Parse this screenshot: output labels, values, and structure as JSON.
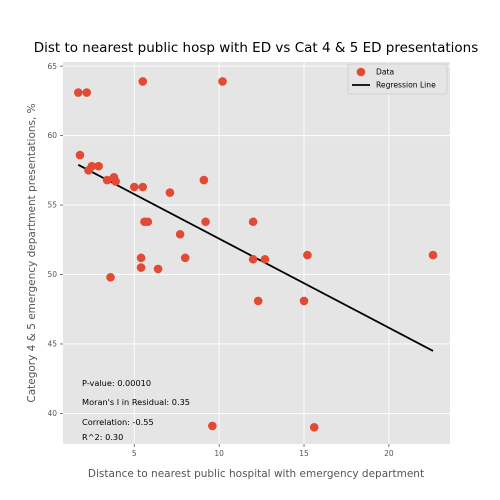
{
  "chart_data": {
    "type": "scatter",
    "title": "Dist to nearest public hosp with ED vs Cat 4 & 5 ED presentations",
    "xlabel": "Distance to nearest public hospital with emergency department",
    "ylabel": "Category 4 & 5 emergency department presentations, %",
    "xlim": [
      0.8,
      23.6
    ],
    "ylim": [
      37.8,
      65.3
    ],
    "xticks": [
      5,
      10,
      15,
      20
    ],
    "yticks": [
      40,
      45,
      50,
      55,
      60,
      65
    ],
    "grid": true,
    "legend_position": "top-right",
    "series": [
      {
        "name": "Data",
        "kind": "points",
        "color": "#E24A33",
        "points": [
          {
            "x": 1.7,
            "y": 63.1
          },
          {
            "x": 2.2,
            "y": 63.1
          },
          {
            "x": 5.5,
            "y": 63.9
          },
          {
            "x": 10.2,
            "y": 63.9
          },
          {
            "x": 1.8,
            "y": 58.6
          },
          {
            "x": 2.3,
            "y": 57.5
          },
          {
            "x": 2.5,
            "y": 57.8
          },
          {
            "x": 2.9,
            "y": 57.8
          },
          {
            "x": 3.4,
            "y": 56.8
          },
          {
            "x": 3.8,
            "y": 57.0
          },
          {
            "x": 3.9,
            "y": 56.7
          },
          {
            "x": 5.0,
            "y": 56.3
          },
          {
            "x": 5.5,
            "y": 56.3
          },
          {
            "x": 7.1,
            "y": 55.9
          },
          {
            "x": 9.1,
            "y": 56.8
          },
          {
            "x": 5.6,
            "y": 53.8
          },
          {
            "x": 5.8,
            "y": 53.8
          },
          {
            "x": 9.2,
            "y": 53.8
          },
          {
            "x": 12.0,
            "y": 53.8
          },
          {
            "x": 7.7,
            "y": 52.9
          },
          {
            "x": 5.4,
            "y": 51.2
          },
          {
            "x": 8.0,
            "y": 51.2
          },
          {
            "x": 12.0,
            "y": 51.1
          },
          {
            "x": 12.7,
            "y": 51.1
          },
          {
            "x": 5.4,
            "y": 50.5
          },
          {
            "x": 6.4,
            "y": 50.4
          },
          {
            "x": 3.6,
            "y": 49.8
          },
          {
            "x": 15.2,
            "y": 51.4
          },
          {
            "x": 22.6,
            "y": 51.4
          },
          {
            "x": 12.3,
            "y": 48.1
          },
          {
            "x": 15.0,
            "y": 48.1
          },
          {
            "x": 9.6,
            "y": 39.1
          },
          {
            "x": 15.6,
            "y": 39.0
          }
        ]
      },
      {
        "name": "Regression Line",
        "kind": "line",
        "color": "#000000",
        "points": [
          {
            "x": 1.7,
            "y": 57.9
          },
          {
            "x": 22.6,
            "y": 44.5
          }
        ]
      }
    ],
    "annotations": [
      "P-value: 0.00010",
      "Moran's I in Residual: 0.35",
      "Correlation: -0.55",
      "R^2: 0.30"
    ]
  }
}
